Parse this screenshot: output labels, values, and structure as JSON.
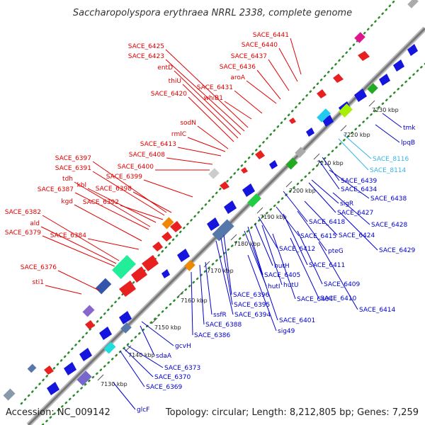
{
  "title": "Saccharopolyspora erythraea NRRL 2338, complete genome",
  "footer": {
    "accession": "Accession: NC_009142",
    "summary": "Topology: circular; Length: 8,212,805 bp; Genes: 7,259"
  },
  "colors": {
    "forward_label": "#e00000",
    "reverse_label": "#0000cc",
    "rna_label": "#33b5e5",
    "backbone": "#8c8c8c",
    "dotted_track": "#2a8a2a"
  },
  "kbp_ticks": [
    "7130 kbp",
    "7140 kbp",
    "7150 kbp",
    "7160 kbp",
    "7170 kbp",
    "7180 kbp",
    "7190 kbp",
    "7200 kbp",
    "7210 kbp",
    "7220 kbp",
    "7230 kbp"
  ],
  "forward_labels": [
    "SACE_6441",
    "SACE_6440",
    "SACE_6437",
    "SACE_6436",
    "aroA",
    "SACE_6425",
    "SACE_6423",
    "entD",
    "thiU",
    "SACE_6431",
    "SACE_6420",
    "whiB1",
    "sodN",
    "rmlC",
    "SACE_6413",
    "SACE_6408",
    "SACE_6400",
    "SACE_6397",
    "SACE_6391",
    "SACE_6399",
    "tdh",
    "kbl",
    "SACE_6387",
    "SACE_6398",
    "kgd",
    "SACE_6392",
    "SACE_6382",
    "ald",
    "SACE_6379",
    "SACE_6384",
    "SACE_6376",
    "sti1"
  ],
  "reverse_labels": [
    "tmk",
    "lpqB",
    "SACE_8116",
    "SACE_8114",
    "SACE_6439",
    "SACE_6434",
    "SACE_6438",
    "sigR",
    "SACE_6427",
    "SACE_6418",
    "SACE_6428",
    "SACE_6424",
    "SACE_6415",
    "SACE_6429",
    "SACE_6412",
    "pteG",
    "hutH",
    "SACE_6411",
    "SACE_6405",
    "hutU",
    "SACE_6409",
    "hutI",
    "SACE_6404",
    "SACE_6410",
    "SACE_6396",
    "SACE_6414",
    "SACE_6395",
    "SACE_6394",
    "SACE_6401",
    "ssfR",
    "SACE_6388",
    "sig49",
    "SACE_6386",
    "gcvH",
    "sdaA",
    "SACE_6373",
    "SACE_6370",
    "SACE_6369",
    "glcF"
  ]
}
